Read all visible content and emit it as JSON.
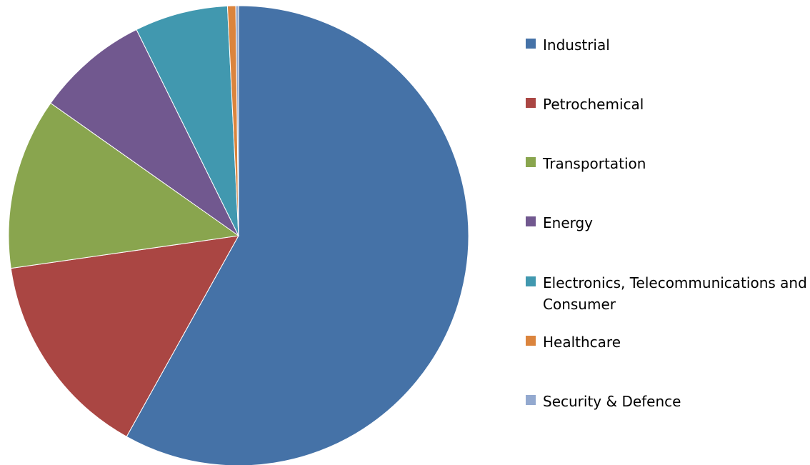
{
  "chart_data": {
    "type": "pie",
    "title": "",
    "categories": [
      "Industrial",
      "Petrochemical",
      "Transportation",
      "Energy",
      "Electronics, Telecommunications and Consumer",
      "Healthcare",
      "Security & Defence"
    ],
    "values": [
      60.3,
      15.2,
      12.5,
      8.2,
      6.8,
      0.6,
      0.2
    ],
    "colors": [
      "#4572A7",
      "#AA4643",
      "#89A54E",
      "#71588F",
      "#4198AF",
      "#DB843D",
      "#93A9CF"
    ],
    "start_angle": "12 o'clock, clockwise",
    "legend_position": "right"
  }
}
